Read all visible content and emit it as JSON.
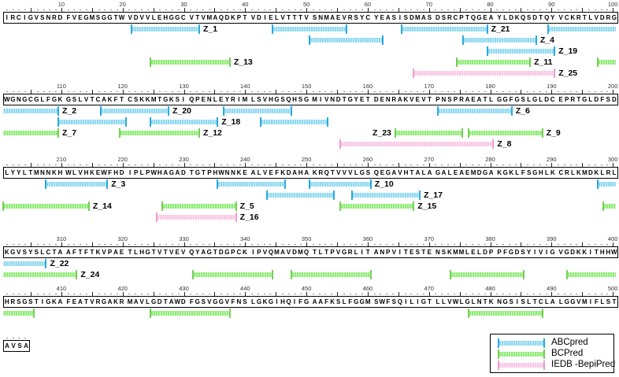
{
  "legend": {
    "items": [
      {
        "id": "abcpred",
        "label": "ABCpred",
        "fill": "#8FD9F1",
        "tick": "#2BAADF"
      },
      {
        "id": "bcpred",
        "label": "BCPred",
        "fill": "#90EC78",
        "tick": "#79CE58"
      },
      {
        "id": "bepipred",
        "label": "IEDB -BepiPred",
        "fill": "#F8C7E4",
        "tick": "#EC9ECE"
      }
    ]
  },
  "blocks": [
    {
      "start": 1,
      "sequence": "IRCIGVSNRDFVEGMSGGTWVDVVLEHGGCVTVMAQDKPTVDIELVTTTVSNMAEVRSYCYEASISDMASDSRCPTQGEAYLDKQSDTQYVCKRTLVDRG",
      "ruler_numbers": [
        10,
        20,
        30,
        40,
        50,
        60,
        70,
        80,
        90,
        100
      ],
      "lines": [
        {
          "color": "abcpred",
          "segments": [
            {
              "s": 22,
              "e": 32,
              "label": "Z_1"
            },
            {
              "s": 45,
              "e": 56
            },
            {
              "s": 66,
              "e": 79,
              "label": "Z_21"
            },
            {
              "s": 90,
              "e": 100,
              "open_r": true
            }
          ]
        },
        {
          "color": "abcpred",
          "segments": [
            {
              "s": 51,
              "e": 62
            },
            {
              "s": 76,
              "e": 87,
              "label": "Z_4"
            }
          ]
        },
        {
          "color": "abcpred",
          "segments": [
            {
              "s": 80,
              "e": 90,
              "label": "Z_19"
            }
          ]
        },
        {
          "color": "bcpred",
          "segments": [
            {
              "s": 25,
              "e": 37,
              "label": "Z_13"
            },
            {
              "s": 75,
              "e": 86,
              "label": "Z_11"
            },
            {
              "s": 98,
              "e": 100,
              "open_r": true
            }
          ]
        },
        {
          "color": "bepipred",
          "segments": [
            {
              "s": 68,
              "e": 90,
              "label": "Z_25"
            }
          ]
        }
      ]
    },
    {
      "start": 101,
      "sequence": "WGNGCGLFGKGSLVTCAKFTCSKKMTGKSIQPENLEYRIMLSVHGSQHSGMIVNDTGYETDENRAKVEVTPNSPRAEATLGGFGSLGLDCEPRTGLDFSD",
      "ruler_numbers": [
        110,
        120,
        130,
        140,
        150,
        160,
        170,
        180,
        190,
        200
      ],
      "lines": [
        {
          "color": "abcpred",
          "segments": [
            {
              "s": 101,
              "e": 109,
              "label": "Z_2",
              "open_l": true
            },
            {
              "s": 117,
              "e": 127,
              "label": "Z_20"
            },
            {
              "s": 137,
              "e": 147
            },
            {
              "s": 172,
              "e": 183,
              "label": "Z_6"
            }
          ]
        },
        {
          "color": "abcpred",
          "segments": [
            {
              "s": 110,
              "e": 120
            },
            {
              "s": 125,
              "e": 135,
              "label": "Z_18"
            },
            {
              "s": 143,
              "e": 153
            }
          ]
        },
        {
          "color": "bcpred",
          "segments": [
            {
              "s": 101,
              "e": 109,
              "label": "Z_7",
              "open_l": true
            },
            {
              "s": 120,
              "e": 132,
              "label": "Z_12"
            },
            {
              "s": 165,
              "e": 175,
              "label": "Z_23",
              "label_side": "left"
            },
            {
              "s": 177,
              "e": 188,
              "label": "Z_9"
            }
          ]
        },
        {
          "color": "bepipred",
          "segments": [
            {
              "s": 156,
              "e": 180,
              "label": "Z_8"
            }
          ]
        }
      ]
    },
    {
      "start": 201,
      "sequence": "LYYLTMNNKHWLVHKEWFHDIPLPWHAGADTGTPHWNNKEALVEFKDAHAKRQTVVVLGSQEGAVHTALAGALEAEMDGAKGKLFSGHLKCRLKMDKLRL",
      "ruler_numbers": [
        210,
        220,
        230,
        240,
        250,
        260,
        270,
        280,
        290,
        300
      ],
      "lines": [
        {
          "color": "abcpred",
          "segments": [
            {
              "s": 208,
              "e": 217,
              "label": "Z_3"
            },
            {
              "s": 236,
              "e": 246
            },
            {
              "s": 251,
              "e": 260,
              "label": "Z_10"
            },
            {
              "s": 298,
              "e": 300,
              "open_r": true
            }
          ]
        },
        {
          "color": "abcpred",
          "segments": [
            {
              "s": 244,
              "e": 254
            },
            {
              "s": 258,
              "e": 268,
              "label": "Z_17"
            }
          ]
        },
        {
          "color": "bcpred",
          "segments": [
            {
              "s": 201,
              "e": 214,
              "label": "Z_14"
            },
            {
              "s": 227,
              "e": 238,
              "label": "Z_5"
            },
            {
              "s": 256,
              "e": 267,
              "label": "Z_15"
            },
            {
              "s": 299,
              "e": 300,
              "open_r": true
            }
          ]
        },
        {
          "color": "bepipred",
          "segments": [
            {
              "s": 226,
              "e": 238,
              "label": "Z_16"
            }
          ]
        }
      ]
    },
    {
      "start": 301,
      "sequence": "KGVSYSLCTAAFTFTKVPAETLHGTVTVEVQYAGTDGPCKIPVQMAVDMQTLTPVGRLITANPVITESTENSKMMLELDPPFGDSYIVIGVGDKKITHHW",
      "ruler_numbers": [
        310,
        320,
        330,
        340,
        350,
        360,
        370,
        380,
        390,
        400
      ],
      "lines": [
        {
          "color": "abcpred",
          "segments": [
            {
              "s": 301,
              "e": 307,
              "label": "Z_22",
              "open_l": true
            }
          ]
        },
        {
          "color": "bcpred",
          "segments": [
            {
              "s": 301,
              "e": 312,
              "label": "Z_24",
              "open_l": true
            },
            {
              "s": 332,
              "e": 344
            },
            {
              "s": 348,
              "e": 360
            },
            {
              "s": 374,
              "e": 385
            },
            {
              "s": 393,
              "e": 400,
              "open_r": true
            }
          ]
        }
      ]
    },
    {
      "start": 401,
      "sequence": "HRSGSTIGKAFEATVRGAKRMAVLGDTAWDFGSVGGVFNSLGKGIHQIFGAAFKSLFGGMSWFSQILIGTLLVWLGLNTKNGSISLTCLALGGVMIFLST",
      "ruler_numbers": [
        410,
        420,
        430,
        440,
        450,
        460,
        470,
        480,
        490,
        500
      ],
      "lines": [
        {
          "color": "bcpred",
          "segments": [
            {
              "s": 401,
              "e": 405,
              "open_l": true
            },
            {
              "s": 425,
              "e": 437
            },
            {
              "s": 477,
              "e": 488
            }
          ]
        }
      ]
    },
    {
      "start": 501,
      "sequence": "AVSA",
      "ruler_numbers": [],
      "lines": []
    }
  ]
}
